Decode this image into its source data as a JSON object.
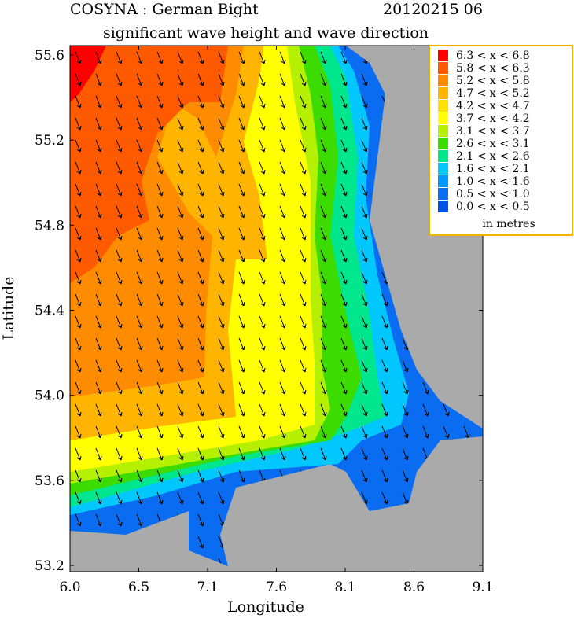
{
  "header": {
    "title_left": "COSYNA : German Bight",
    "title_right": "20120215 06",
    "subtitle": "significant wave height and wave direction"
  },
  "axes": {
    "x_label": "Longitude",
    "y_label": "Latitude",
    "xticks": [
      "6.0",
      "6.5",
      "7.1",
      "7.6",
      "8.1",
      "8.6",
      "9.1"
    ],
    "yticks": [
      "55.6",
      "55.2",
      "54.8",
      "54.4",
      "54.0",
      "53.6",
      "53.2"
    ]
  },
  "legend": {
    "unit": "in metres",
    "items": [
      {
        "label": "6.3 < x < 6.8",
        "color": "#ff0000"
      },
      {
        "label": "5.8 < x < 6.3",
        "color": "#ff5a00"
      },
      {
        "label": "5.2 < x < 5.8",
        "color": "#ff8c00"
      },
      {
        "label": "4.7 < x < 5.2",
        "color": "#ffb400"
      },
      {
        "label": "4.2 < x < 4.7",
        "color": "#ffe100"
      },
      {
        "label": "3.7 < x < 4.2",
        "color": "#ffff00"
      },
      {
        "label": "3.1 < x < 3.7",
        "color": "#b4f000"
      },
      {
        "label": "2.6 < x < 3.1",
        "color": "#3cdc00"
      },
      {
        "label": "2.1 < x < 2.6",
        "color": "#00e68c"
      },
      {
        "label": "1.6 < x < 2.1",
        "color": "#00c8ff"
      },
      {
        "label": "1.0 < x < 1.6",
        "color": "#0096ff"
      },
      {
        "label": "0.5 < x < 1.0",
        "color": "#0a6cf0"
      },
      {
        "label": "0.0 < x < 0.5",
        "color": "#0050e6"
      }
    ]
  }
}
